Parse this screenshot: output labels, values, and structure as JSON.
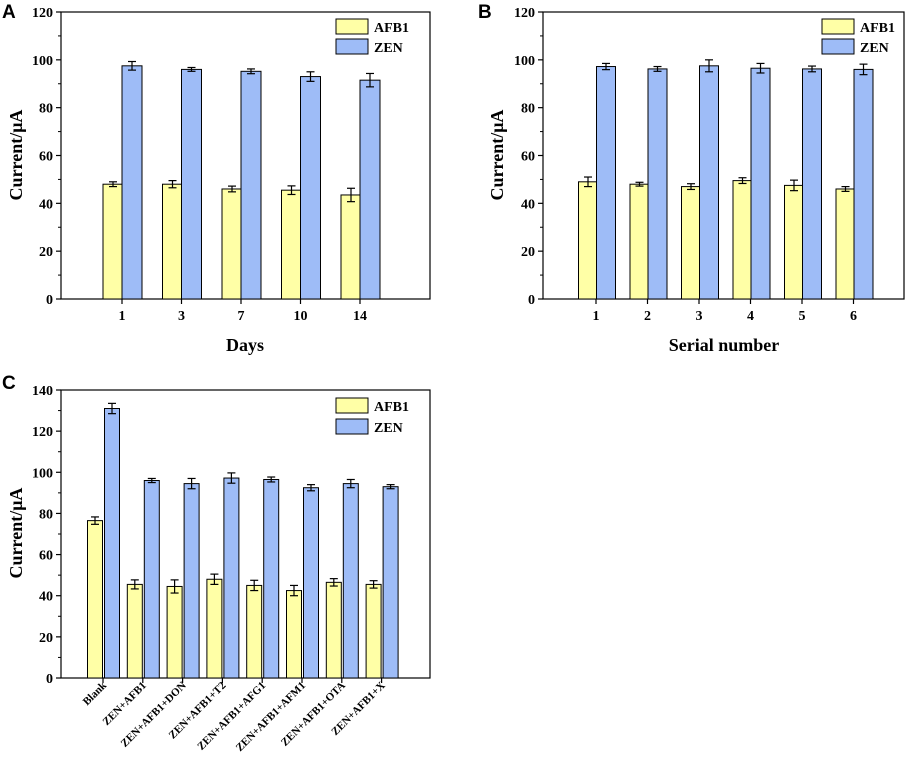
{
  "chart_data": [
    {
      "panel": "A",
      "type": "bar",
      "xlabel": "Days",
      "ylabel": "Current/μA",
      "ylim": [
        0,
        120
      ],
      "yticks": [
        0,
        20,
        40,
        60,
        80,
        100,
        120
      ],
      "categories": [
        "1",
        "3",
        "7",
        "10",
        "14"
      ],
      "legend_position": "top-right",
      "series": [
        {
          "name": "AFB1",
          "color": "#FFFFA6",
          "values": [
            48,
            48,
            46,
            45.5,
            43.5
          ],
          "errors": [
            1,
            1.5,
            1.2,
            1.8,
            2.8
          ]
        },
        {
          "name": "ZEN",
          "color": "#9EBCF7",
          "values": [
            97.5,
            96,
            95.2,
            93,
            91.5
          ],
          "errors": [
            1.8,
            0.8,
            1.0,
            2.0,
            2.8
          ]
        }
      ]
    },
    {
      "panel": "B",
      "type": "bar",
      "xlabel": "Serial number",
      "ylabel": "Current/μA",
      "ylim": [
        0,
        120
      ],
      "yticks": [
        0,
        20,
        40,
        60,
        80,
        100,
        120
      ],
      "categories": [
        "1",
        "2",
        "3",
        "4",
        "5",
        "6"
      ],
      "legend_position": "top-right",
      "series": [
        {
          "name": "AFB1",
          "color": "#FFFFA6",
          "values": [
            49,
            48,
            47,
            49.5,
            47.5,
            46
          ],
          "errors": [
            2,
            0.8,
            1.2,
            1.2,
            2.2,
            1
          ]
        },
        {
          "name": "ZEN",
          "color": "#9EBCF7",
          "values": [
            97.2,
            96.2,
            97.5,
            96.5,
            96.2,
            96
          ],
          "errors": [
            1.3,
            1,
            2.5,
            2,
            1.2,
            2.2
          ]
        }
      ]
    },
    {
      "panel": "C",
      "type": "bar",
      "xlabel": "",
      "ylabel": "Current/μA",
      "ylim": [
        0,
        140
      ],
      "yticks": [
        0,
        20,
        40,
        60,
        80,
        100,
        120,
        140
      ],
      "categories": [
        "Blank",
        "ZEN+AFB1",
        "ZEN+AFB1+DON",
        "ZEN+AFB1+T2",
        "ZEN+AFB1+AFG1",
        "ZEN+AFB1+AFM1",
        "ZEN+AFB1+OTA",
        "ZEN+AFB1+X"
      ],
      "legend_position": "top-right",
      "series": [
        {
          "name": "AFB1",
          "color": "#FFFFA6",
          "values": [
            76.5,
            45.5,
            44.5,
            48,
            45,
            42.5,
            46.5,
            45.5
          ],
          "errors": [
            1.8,
            2.2,
            3.2,
            2.5,
            2.5,
            2.5,
            1.8,
            1.8
          ]
        },
        {
          "name": "ZEN",
          "color": "#9EBCF7",
          "values": [
            131,
            96,
            94.5,
            97.2,
            96.5,
            92.5,
            94.5,
            93
          ],
          "errors": [
            2.5,
            1,
            2.5,
            2.5,
            1.2,
            1.5,
            2,
            1
          ]
        }
      ]
    }
  ]
}
